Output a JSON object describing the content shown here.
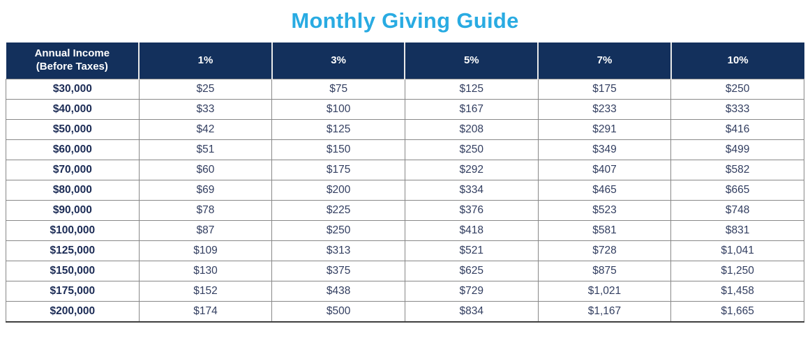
{
  "page": {
    "title": "Monthly Giving Guide"
  },
  "colors": {
    "title_blue": "#29ABE2",
    "header_bg": "#13305C",
    "header_text": "#FFFFFF",
    "income_text": "#1B2B55",
    "cell_text": "#323E60",
    "grid_line": "#888888"
  },
  "chart_data": {
    "type": "table",
    "title": "Monthly Giving Guide",
    "columns": [
      "Annual Income (Before Taxes)",
      "1%",
      "3%",
      "5%",
      "7%",
      "10%"
    ],
    "rows": [
      [
        "$30,000",
        "$25",
        "$75",
        "$125",
        "$175",
        "$250"
      ],
      [
        "$40,000",
        "$33",
        "$100",
        "$167",
        "$233",
        "$333"
      ],
      [
        "$50,000",
        "$42",
        "$125",
        "$208",
        "$291",
        "$416"
      ],
      [
        "$60,000",
        "$51",
        "$150",
        "$250",
        "$349",
        "$499"
      ],
      [
        "$70,000",
        "$60",
        "$175",
        "$292",
        "$407",
        "$582"
      ],
      [
        "$80,000",
        "$69",
        "$200",
        "$334",
        "$465",
        "$665"
      ],
      [
        "$90,000",
        "$78",
        "$225",
        "$376",
        "$523",
        "$748"
      ],
      [
        "$100,000",
        "$87",
        "$250",
        "$418",
        "$581",
        "$831"
      ],
      [
        "$125,000",
        "$109",
        "$313",
        "$521",
        "$728",
        "$1,041"
      ],
      [
        "$150,000",
        "$130",
        "$375",
        "$625",
        "$875",
        "$1,250"
      ],
      [
        "$175,000",
        "$152",
        "$438",
        "$729",
        "$1,021",
        "$1,458"
      ],
      [
        "$200,000",
        "$174",
        "$500",
        "$834",
        "$1,167",
        "$1,665"
      ]
    ]
  }
}
